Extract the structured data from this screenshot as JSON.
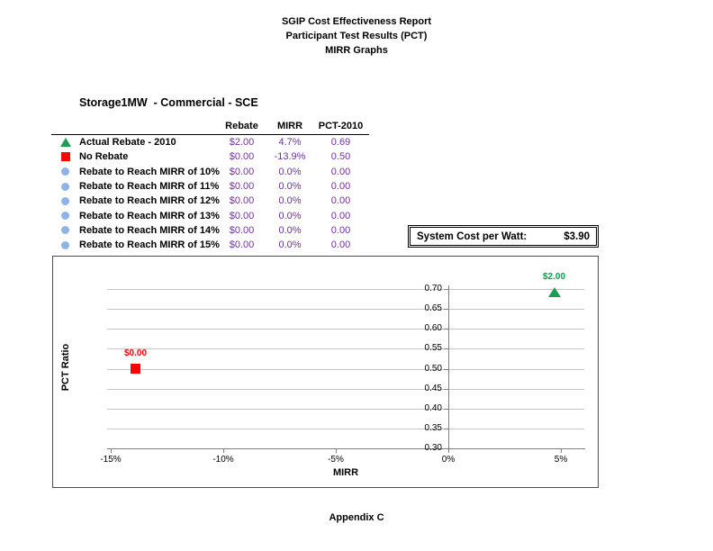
{
  "page": {
    "title_lines": [
      "SGIP Cost Effectiveness Report",
      "Participant Test Results (PCT)",
      "MIRR Graphs"
    ],
    "report_title": "Storage1MW  - Commercial - SCE",
    "footer": "Appendix C"
  },
  "table": {
    "headers": [
      "Rebate",
      "MIRR",
      "PCT-2010"
    ],
    "value_color": "#7030A0",
    "rows": [
      {
        "icon": "triangle",
        "color": "#1F9D55",
        "label": "Actual Rebate - 2010",
        "rebate": "$2.00",
        "mirr": "4.7%",
        "pct": "0.69"
      },
      {
        "icon": "square",
        "color": "#FF0000",
        "label": "No Rebate",
        "rebate": "$0.00",
        "mirr": "-13.9%",
        "pct": "0.50"
      },
      {
        "icon": "circle",
        "color": "#8DB4E2",
        "label": "Rebate to Reach MIRR of 10%",
        "rebate": "$0.00",
        "mirr": "0.0%",
        "pct": "0.00"
      },
      {
        "icon": "circle",
        "color": "#8DB4E2",
        "label": "Rebate to Reach MIRR of 11%",
        "rebate": "$0.00",
        "mirr": "0.0%",
        "pct": "0.00"
      },
      {
        "icon": "circle",
        "color": "#8DB4E2",
        "label": "Rebate to Reach MIRR of 12%",
        "rebate": "$0.00",
        "mirr": "0.0%",
        "pct": "0.00"
      },
      {
        "icon": "circle",
        "color": "#8DB4E2",
        "label": "Rebate to Reach MIRR of 13%",
        "rebate": "$0.00",
        "mirr": "0.0%",
        "pct": "0.00"
      },
      {
        "icon": "circle",
        "color": "#8DB4E2",
        "label": "Rebate to Reach MIRR of 14%",
        "rebate": "$0.00",
        "mirr": "0.0%",
        "pct": "0.00"
      },
      {
        "icon": "circle",
        "color": "#8DB4E2",
        "label": "Rebate to Reach MIRR of 15%",
        "rebate": "$0.00",
        "mirr": "0.0%",
        "pct": "0.00"
      }
    ]
  },
  "system_cost": {
    "label": "System Cost per Watt:",
    "value": "$3.90"
  },
  "chart_data": {
    "type": "scatter",
    "title": "",
    "xlabel": "MIRR",
    "ylabel": "PCT Ratio",
    "x_range": [
      -15.16,
      6.04
    ],
    "y_range": [
      0.3,
      0.7
    ],
    "grid": "horizontal",
    "legend_position": "none",
    "x_ticks": [
      {
        "value": -15,
        "label": "-15%"
      },
      {
        "value": -10,
        "label": "-10%"
      },
      {
        "value": -5,
        "label": "-5%"
      },
      {
        "value": 0,
        "label": "0%"
      },
      {
        "value": 5,
        "label": "5%"
      }
    ],
    "y_ticks": [
      {
        "value": 0.3,
        "label": "0.30"
      },
      {
        "value": 0.35,
        "label": "0.35"
      },
      {
        "value": 0.4,
        "label": "0.40"
      },
      {
        "value": 0.45,
        "label": "0.45"
      },
      {
        "value": 0.5,
        "label": "0.50"
      },
      {
        "value": 0.55,
        "label": "0.55"
      },
      {
        "value": 0.6,
        "label": "0.60"
      },
      {
        "value": 0.65,
        "label": "0.65"
      },
      {
        "value": 0.7,
        "label": "0.70"
      }
    ],
    "series": [
      {
        "name": "Actual Rebate - 2010",
        "marker": "triangle",
        "color": "#1F9D55",
        "label_color": "#00A14B",
        "points": [
          {
            "x": 4.7,
            "y": 0.69,
            "label": "$2.00"
          }
        ]
      },
      {
        "name": "No Rebate",
        "marker": "square",
        "color": "#FF0000",
        "label_color": "#FF0000",
        "points": [
          {
            "x": -13.9,
            "y": 0.5,
            "label": "$0.00"
          }
        ]
      }
    ],
    "colors": {
      "gridline": "#C6C6C6",
      "axis": "#7F7F7F"
    }
  }
}
